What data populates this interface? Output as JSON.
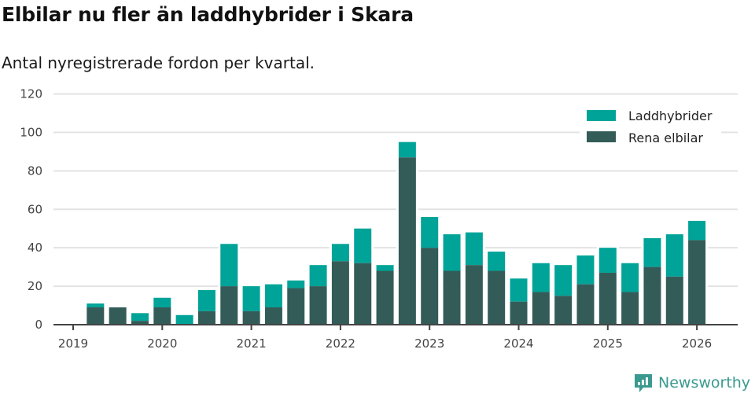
{
  "header": {
    "title": "Elbilar nu fler än laddhybrider i Skara",
    "subtitle": "Antal nyregistrerade fordon per kvartal."
  },
  "brand": {
    "logo_text": "Newsworthy",
    "logo_color": "#3a9a8f"
  },
  "colors": {
    "laddhybrider": "#00a398",
    "rena_elbilar": "#335c58",
    "grid": "#e3e3e3",
    "axis": "#444444"
  },
  "chart_data": {
    "type": "bar",
    "stacked": true,
    "title": "Elbilar nu fler än laddhybrider i Skara",
    "subtitle": "Antal nyregistrerade fordon per kvartal.",
    "xlabel": "",
    "ylabel": "",
    "ylim": [
      0,
      120
    ],
    "yticks": [
      0,
      20,
      40,
      60,
      80,
      100,
      120
    ],
    "xticks": [
      "2019",
      "2020",
      "2021",
      "2022",
      "2023",
      "2024",
      "2025",
      "2026"
    ],
    "grid": true,
    "legend_position": "top-right",
    "categories": [
      "2019 Q2",
      "2019 Q3",
      "2019 Q4",
      "2020 Q1",
      "2020 Q2",
      "2020 Q3",
      "2020 Q4",
      "2021 Q1",
      "2021 Q2",
      "2021 Q3",
      "2021 Q4",
      "2022 Q1",
      "2022 Q2",
      "2022 Q3",
      "2022 Q4",
      "2023 Q1",
      "2023 Q2",
      "2023 Q3",
      "2023 Q4",
      "2024 Q1",
      "2024 Q2",
      "2024 Q3",
      "2024 Q4",
      "2025 Q1",
      "2025 Q2",
      "2025 Q3",
      "2025 Q4",
      "2026 Q1"
    ],
    "series": [
      {
        "name": "Rena elbilar",
        "color": "#335c58",
        "values": [
          9,
          9,
          2,
          9,
          0,
          7,
          20,
          7,
          9,
          19,
          20,
          33,
          32,
          28,
          87,
          40,
          28,
          31,
          28,
          12,
          17,
          15,
          21,
          27,
          17,
          30,
          25,
          44
        ]
      },
      {
        "name": "Laddhybrider",
        "color": "#00a398",
        "values": [
          2,
          0,
          4,
          5,
          5,
          11,
          22,
          13,
          12,
          4,
          11,
          9,
          18,
          3,
          8,
          16,
          19,
          17,
          10,
          12,
          15,
          16,
          15,
          13,
          15,
          15,
          22,
          10
        ]
      }
    ]
  },
  "legend": {
    "items": [
      {
        "label": "Laddhybrider",
        "color": "#00a398"
      },
      {
        "label": "Rena elbilar",
        "color": "#335c58"
      }
    ]
  }
}
